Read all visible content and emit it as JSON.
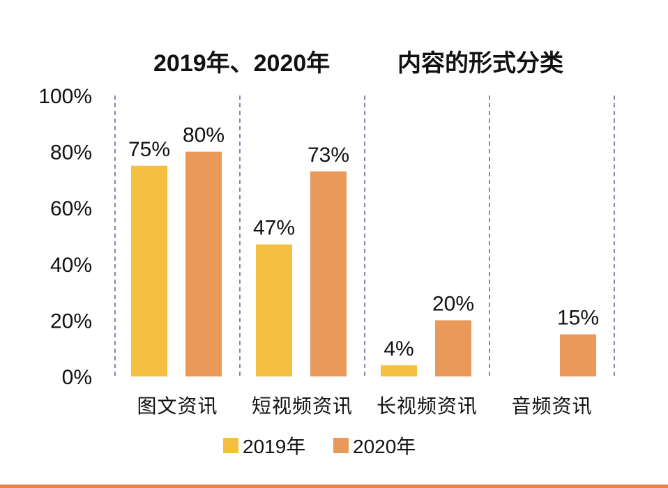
{
  "chart_data": {
    "type": "bar",
    "title_part1": "2019年、2020年",
    "title_part2": "内容的形式分类",
    "categories": [
      "图文资讯",
      "短视频资讯",
      "长视频资讯",
      "音频资讯"
    ],
    "series": [
      {
        "name": "2019年",
        "color": "#F5C042",
        "values": [
          75,
          47,
          4,
          null
        ],
        "labels": [
          "75%",
          "47%",
          "4%",
          null
        ]
      },
      {
        "name": "2020年",
        "color": "#E99A5B",
        "values": [
          80,
          73,
          20,
          15
        ],
        "labels": [
          "80%",
          "73%",
          "20%",
          "15%"
        ]
      }
    ],
    "ylim": [
      0,
      100
    ],
    "y_ticks": [
      "0%",
      "20%",
      "40%",
      "60%",
      "80%",
      "100%"
    ],
    "xlabel": "",
    "ylabel": "",
    "legend_position": "bottom-center"
  },
  "accent_color": "#E8814E"
}
